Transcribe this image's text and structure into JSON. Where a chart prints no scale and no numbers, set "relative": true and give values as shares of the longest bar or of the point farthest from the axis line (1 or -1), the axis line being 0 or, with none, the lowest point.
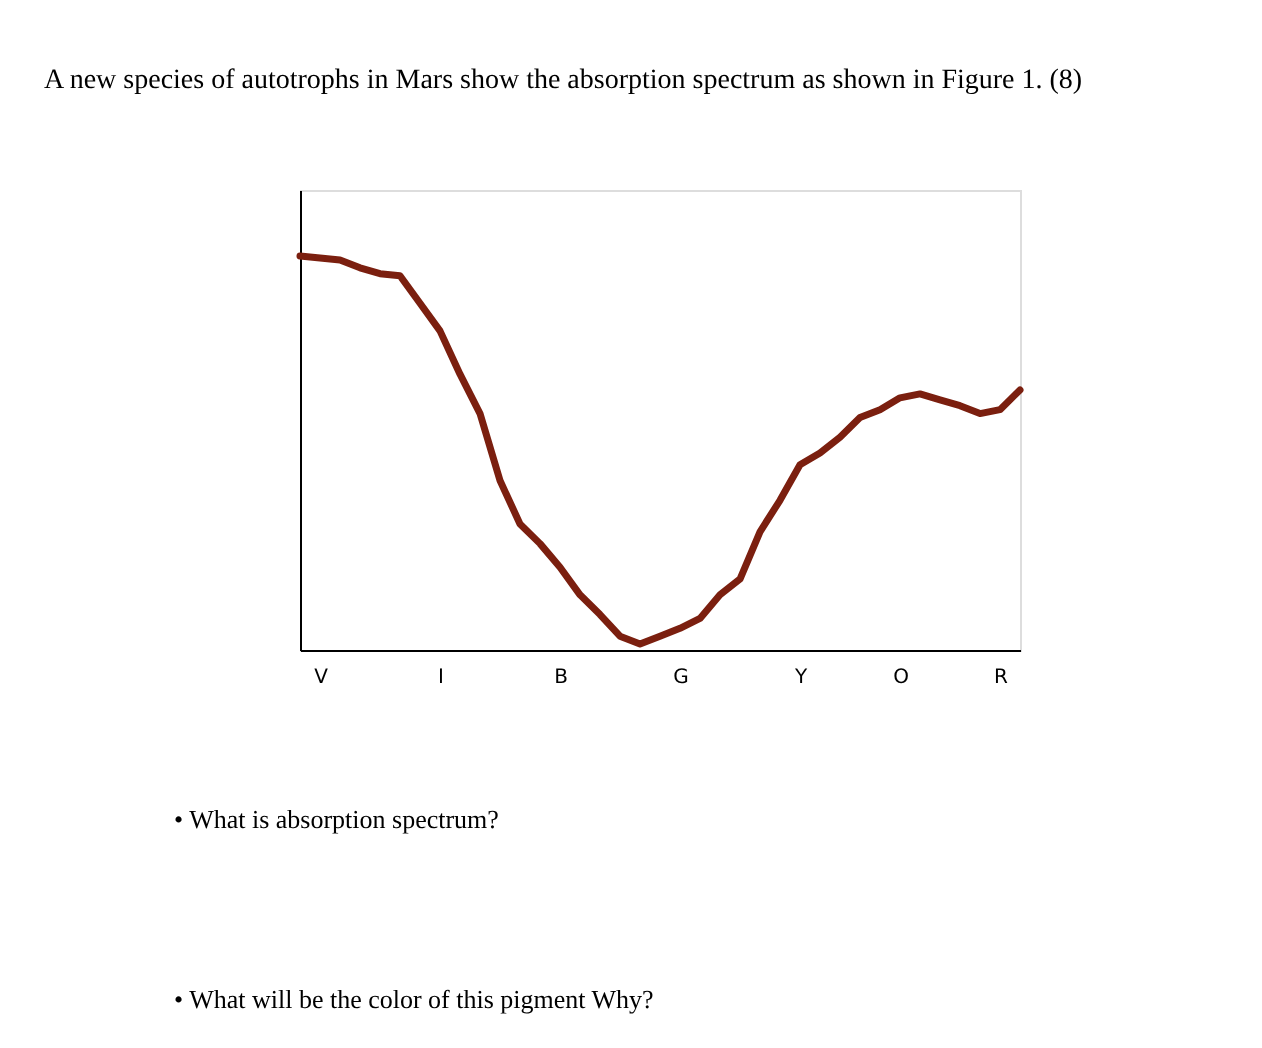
{
  "chart_data": {
    "type": "line",
    "title": "A new species of autotrophs in Mars show the absorption spectrum as shown in Figure 1. (8)",
    "relative": true,
    "grid": false,
    "marker": "none",
    "line_style": "solid",
    "categories": [
      null,
      "V",
      null,
      null,
      null,
      null,
      null,
      "I",
      null,
      null,
      null,
      null,
      null,
      "B",
      null,
      null,
      null,
      null,
      null,
      "G",
      null,
      null,
      null,
      null,
      null,
      "Y",
      null,
      null,
      null,
      null,
      "O",
      null,
      null,
      null,
      null,
      "R",
      null
    ],
    "series": [
      {
        "color": "#7b1f0f",
        "values": [
          1.0,
          0.995,
          0.99,
          0.97,
          0.955,
          0.95,
          0.88,
          0.81,
          0.7,
          0.6,
          0.43,
          0.32,
          0.27,
          0.21,
          0.14,
          0.09,
          0.035,
          0.015,
          0.035,
          0.055,
          0.08,
          0.14,
          0.18,
          0.3,
          0.38,
          0.47,
          0.5,
          0.54,
          0.59,
          0.61,
          0.64,
          0.65,
          0.635,
          0.62,
          0.6,
          0.61,
          0.66
        ]
      }
    ],
    "annotations": [
      "•    What is absorption spectrum?",
      "•    What will be the color of this pigment Why?"
    ]
  }
}
